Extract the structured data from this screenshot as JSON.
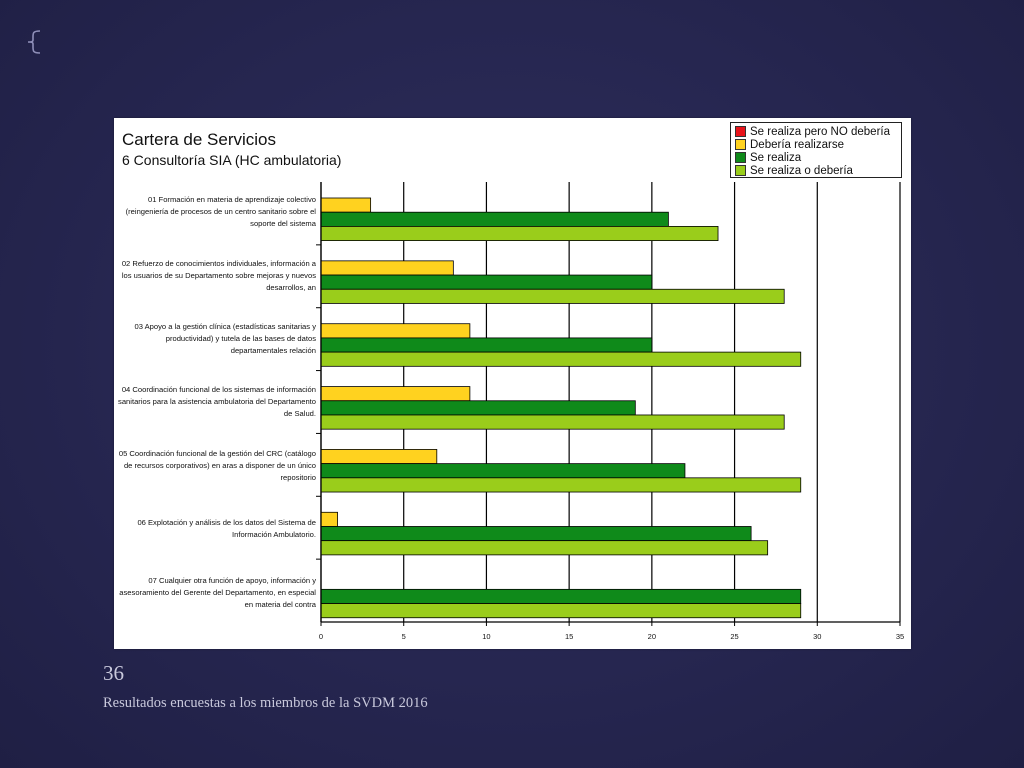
{
  "slide": {
    "number": "36",
    "footer": "Resultados encuestas a los miembros de la SVDM 2016"
  },
  "chart_data": {
    "type": "bar",
    "orientation": "horizontal",
    "title": "Cartera de Servicios",
    "subtitle": "6 Consultoría SIA (HC ambulatoria)",
    "categories": [
      "01 Formación en materia de aprendizaje colectivo (reingeniería de procesos de un centro sanitario sobre el soporte del sistema",
      "02 Refuerzo de conocimientos individuales, información a los usuarios de su Departamento sobre mejoras y nuevos desarrollos, an",
      "03 Apoyo a la gestión clínica (estadísticas sanitarias y productividad) y tutela de las bases de datos departamentales relación",
      "04 Coordinación funcional de los sistemas de información sanitarios para la asistencia ambulatoria del Departamento de Salud.",
      "05 Coordinación funcional de la gestión del CRC (catálogo de recursos corporativos) en aras a disponer de un único repositorio",
      "06 Explotación y análisis de los datos del Sistema de Información Ambulatorio.",
      "07 Cualquier otra función de apoyo, información y asesoramiento del Gerente del Departamento, en especial en materia del contra"
    ],
    "series": [
      {
        "name": "Se realiza pero NO debería",
        "color": "#e8141b",
        "values": [
          0,
          0,
          0,
          0,
          0,
          0,
          0
        ]
      },
      {
        "name": "Debería realizarse",
        "color": "#ffd21f",
        "values": [
          3,
          8,
          9,
          9,
          7,
          1,
          0
        ]
      },
      {
        "name": "Se realiza",
        "color": "#0f8a1a",
        "values": [
          21,
          20,
          20,
          19,
          22,
          26,
          29
        ]
      },
      {
        "name": "Se realiza o debería",
        "color": "#9acd1b",
        "values": [
          24,
          28,
          29,
          28,
          29,
          27,
          29
        ]
      }
    ],
    "xlim": [
      0,
      35
    ],
    "xticks": [
      "0",
      "5",
      "10",
      "15",
      "20",
      "25",
      "30",
      "35"
    ],
    "grid": true,
    "legend_position": "top-right"
  }
}
